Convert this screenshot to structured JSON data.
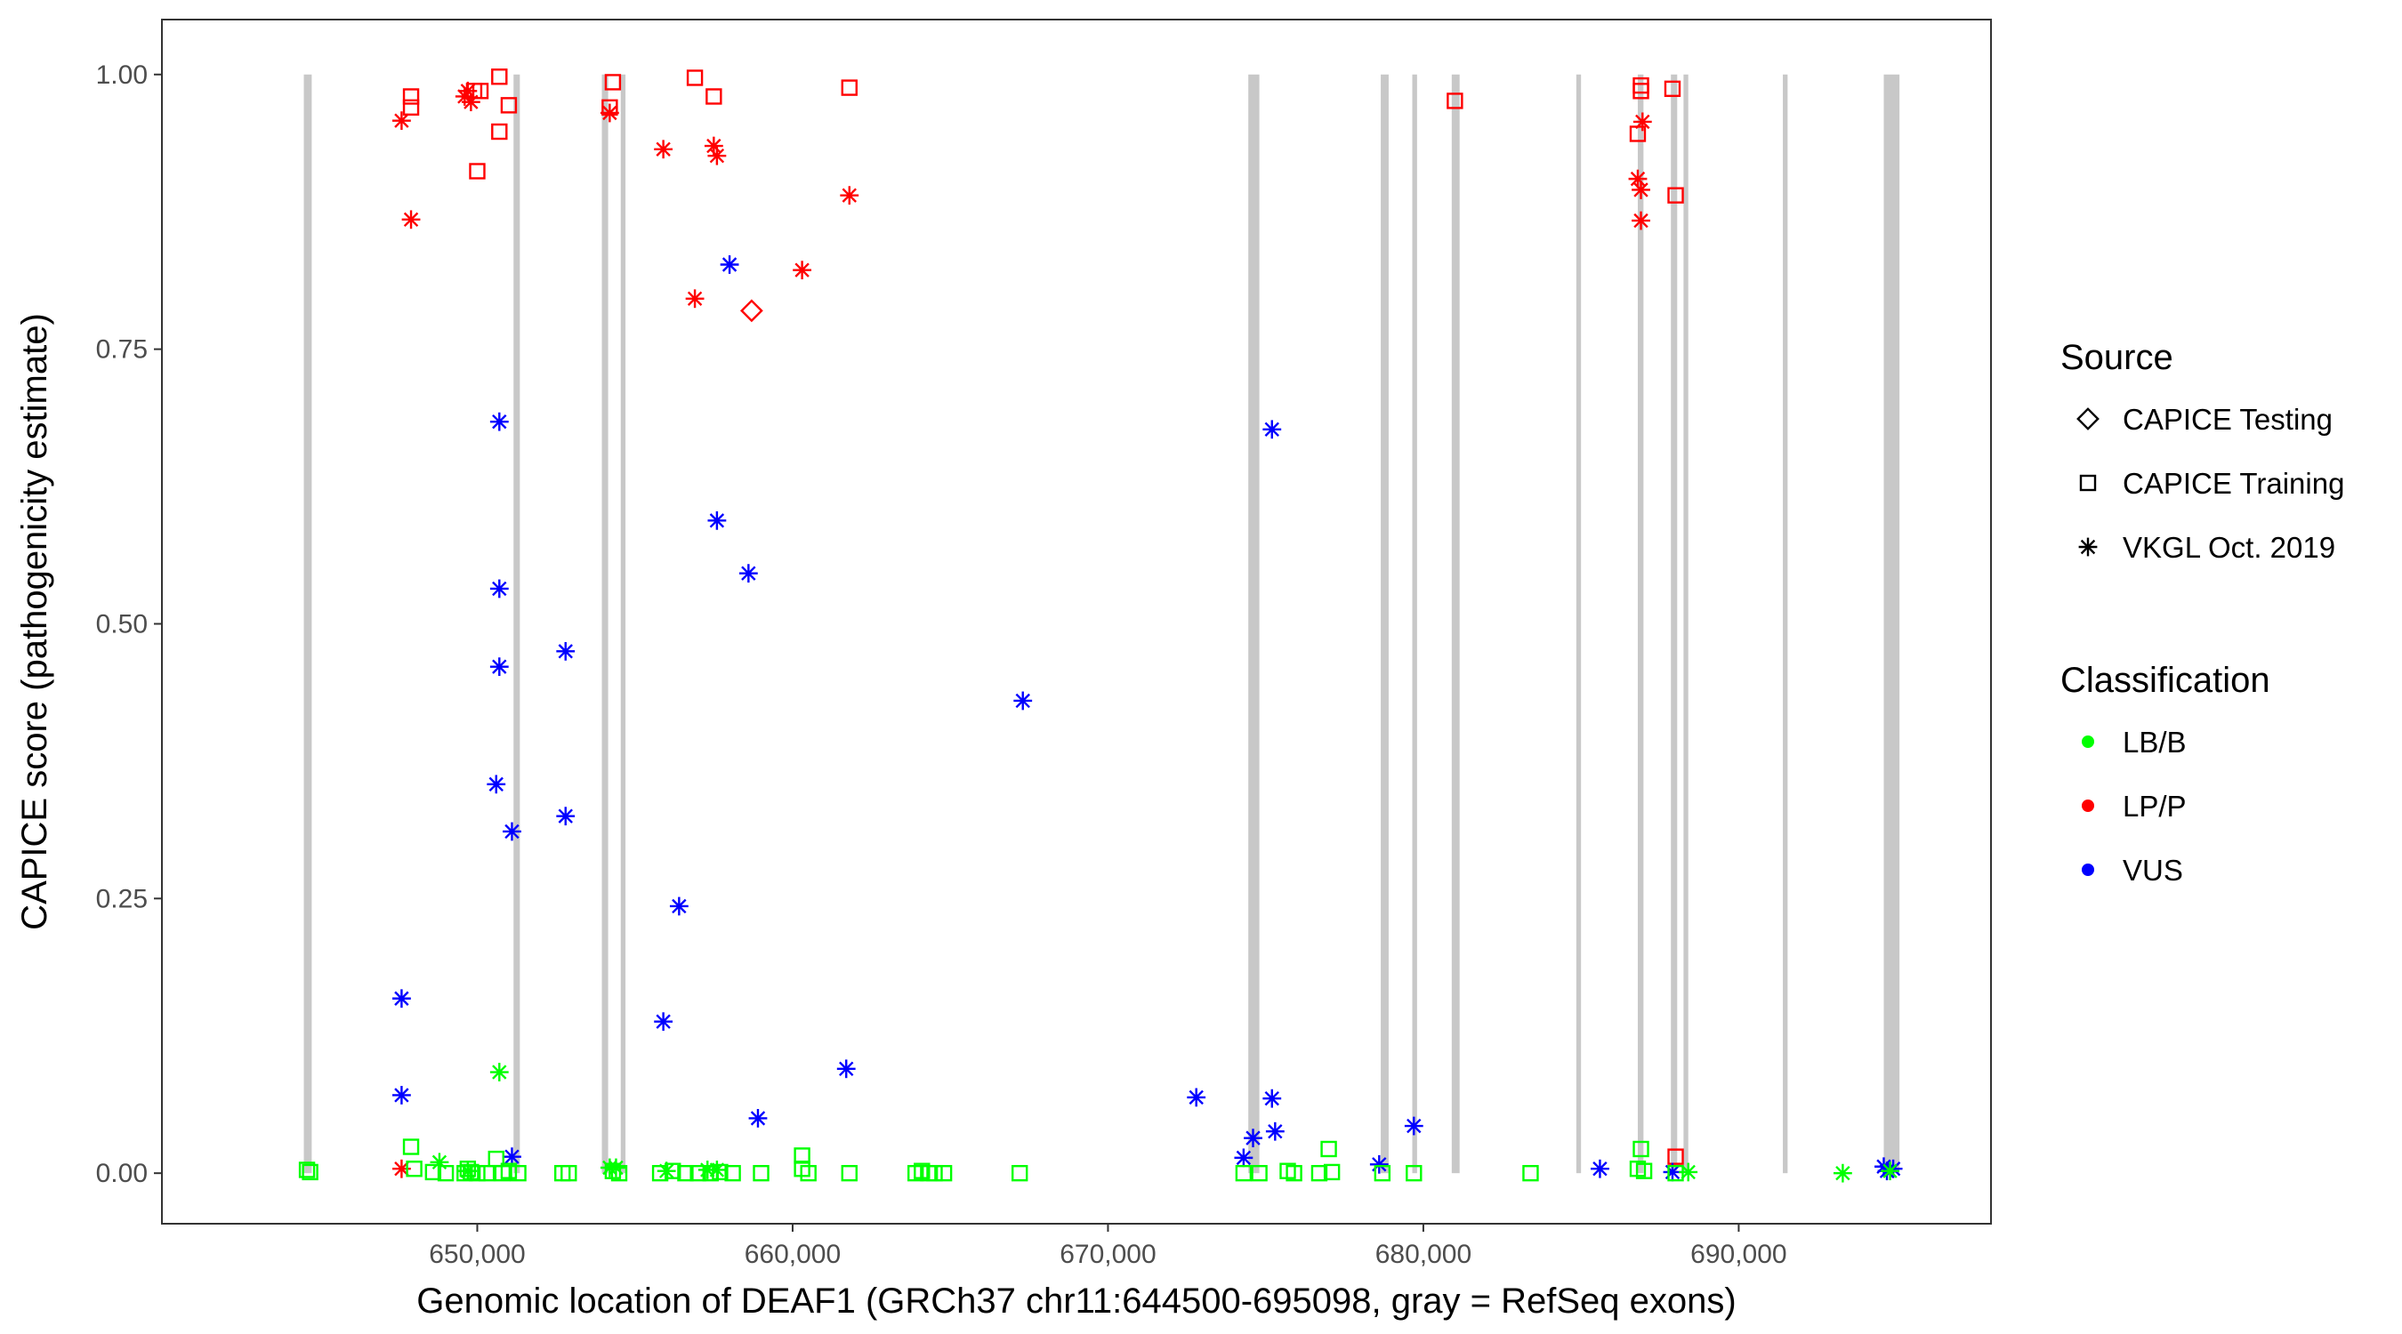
{
  "chart_data": {
    "type": "scatter",
    "xlabel": "Genomic location of DEAF1 (GRCh37 chr11:644500-695098, gray = RefSeq exons)",
    "ylabel": "CAPICE score (pathogenicity estimate)",
    "xlim": [
      640000,
      698000
    ],
    "ylim": [
      -0.046,
      1.05
    ],
    "x_ticks": [
      650000,
      660000,
      670000,
      680000,
      690000
    ],
    "x_tick_labels": [
      "650,000",
      "660,000",
      "670,000",
      "680,000",
      "690,000"
    ],
    "y_ticks": [
      0,
      0.25,
      0.5,
      0.75,
      1
    ],
    "y_tick_labels": [
      "0.00",
      "0.25",
      "0.50",
      "0.75",
      "1.00"
    ],
    "grid": false,
    "legend_position": "right",
    "exons": [
      [
        644500,
        644750
      ],
      [
        651150,
        651350
      ],
      [
        653950,
        654150
      ],
      [
        654550,
        654700
      ],
      [
        674450,
        674800
      ],
      [
        678650,
        678900
      ],
      [
        679650,
        679800
      ],
      [
        680900,
        681150
      ],
      [
        684850,
        685000
      ],
      [
        686800,
        686980
      ],
      [
        687850,
        688050
      ],
      [
        688250,
        688400
      ],
      [
        691400,
        691550
      ],
      [
        694600,
        695098
      ]
    ],
    "legend": {
      "source_title": "Source",
      "source_items": [
        {
          "label": "CAPICE Testing",
          "shape": "diamond"
        },
        {
          "label": "CAPICE Training",
          "shape": "square"
        },
        {
          "label": "VKGL Oct. 2019",
          "shape": "asterisk"
        }
      ],
      "class_title": "Classification",
      "class_items": [
        {
          "label": "LB/B",
          "color": "#00ff00"
        },
        {
          "label": "LP/P",
          "color": "#ff0000"
        },
        {
          "label": "VUS",
          "color": "#0000ff"
        }
      ]
    },
    "series": [
      {
        "classification": "LP/P",
        "source": "CAPICE Training",
        "color": "#ff0000",
        "shape": "square",
        "points": [
          [
            647900,
            0.98
          ],
          [
            647900,
            0.97
          ],
          [
            649900,
            0.985
          ],
          [
            650100,
            0.985
          ],
          [
            650700,
            0.998
          ],
          [
            650700,
            0.948
          ],
          [
            651000,
            0.972
          ],
          [
            650000,
            0.912
          ],
          [
            654300,
            0.993
          ],
          [
            654200,
            0.97
          ],
          [
            656900,
            0.997
          ],
          [
            657500,
            0.98
          ],
          [
            661800,
            0.988
          ],
          [
            681000,
            0.976
          ],
          [
            686900,
            0.99
          ],
          [
            686900,
            0.985
          ],
          [
            686800,
            0.946
          ],
          [
            687900,
            0.987
          ],
          [
            688000,
            0.89
          ],
          [
            688000,
            0.015
          ]
        ]
      },
      {
        "classification": "LP/P",
        "source": "VKGL Oct. 2019",
        "color": "#ff0000",
        "shape": "asterisk",
        "points": [
          [
            647600,
            0.958
          ],
          [
            647900,
            0.868
          ],
          [
            649700,
            0.985
          ],
          [
            649800,
            0.975
          ],
          [
            649600,
            0.98
          ],
          [
            654200,
            0.965
          ],
          [
            655900,
            0.932
          ],
          [
            657500,
            0.935
          ],
          [
            657600,
            0.926
          ],
          [
            656900,
            0.796
          ],
          [
            660300,
            0.822
          ],
          [
            661800,
            0.89
          ],
          [
            686800,
            0.905
          ],
          [
            686900,
            0.895
          ],
          [
            686950,
            0.957
          ],
          [
            686900,
            0.867
          ],
          [
            647600,
            0.004
          ]
        ]
      },
      {
        "classification": "LP/P",
        "source": "CAPICE Testing",
        "color": "#ff0000",
        "shape": "diamond",
        "points": [
          [
            658700,
            0.785
          ]
        ]
      },
      {
        "classification": "VUS",
        "source": "VKGL Oct. 2019",
        "color": "#0000ff",
        "shape": "asterisk",
        "points": [
          [
            650700,
            0.684
          ],
          [
            650700,
            0.532
          ],
          [
            650700,
            0.461
          ],
          [
            650600,
            0.354
          ],
          [
            651100,
            0.311
          ],
          [
            652800,
            0.475
          ],
          [
            652800,
            0.325
          ],
          [
            657600,
            0.594
          ],
          [
            658600,
            0.546
          ],
          [
            658000,
            0.827
          ],
          [
            656400,
            0.243
          ],
          [
            655900,
            0.138
          ],
          [
            658900,
            0.05
          ],
          [
            661700,
            0.095
          ],
          [
            667300,
            0.43
          ],
          [
            647600,
            0.159
          ],
          [
            647600,
            0.071
          ],
          [
            651100,
            0.015
          ],
          [
            672800,
            0.069
          ],
          [
            674300,
            0.014
          ],
          [
            674600,
            0.032
          ],
          [
            675200,
            0.068
          ],
          [
            675300,
            0.038
          ],
          [
            675200,
            0.677
          ],
          [
            678600,
            0.008
          ],
          [
            679700,
            0.043
          ],
          [
            685600,
            0.004
          ],
          [
            687900,
            0.001
          ],
          [
            694600,
            0.006
          ],
          [
            694700,
            0.002
          ],
          [
            694900,
            0.004
          ]
        ]
      },
      {
        "classification": "LB/B",
        "source": "VKGL Oct. 2019",
        "color": "#00ff00",
        "shape": "asterisk",
        "points": [
          [
            650700,
            0.092
          ],
          [
            648800,
            0.01
          ],
          [
            649700,
            0.002
          ],
          [
            654200,
            0.005
          ],
          [
            654400,
            0.005
          ],
          [
            656000,
            0.002
          ],
          [
            657300,
            0.003
          ],
          [
            657600,
            0.003
          ],
          [
            688400,
            0.001
          ],
          [
            693300,
            0.0
          ],
          [
            694800,
            0.002
          ]
        ]
      },
      {
        "classification": "LB/B",
        "source": "CAPICE Training",
        "color": "#00ff00",
        "shape": "square",
        "points": [
          [
            644600,
            0.003
          ],
          [
            644700,
            0.001
          ],
          [
            647900,
            0.024
          ],
          [
            648000,
            0.004
          ],
          [
            648600,
            0.001
          ],
          [
            649000,
            0.0
          ],
          [
            649600,
            0.0
          ],
          [
            649700,
            0.004
          ],
          [
            649800,
            0.001
          ],
          [
            650000,
            0.0
          ],
          [
            650300,
            0.0
          ],
          [
            650600,
            0.013
          ],
          [
            650800,
            0.0
          ],
          [
            651000,
            0.002
          ],
          [
            651300,
            0.0
          ],
          [
            652700,
            0.0
          ],
          [
            652900,
            0.0
          ],
          [
            654300,
            0.002
          ],
          [
            654500,
            0.0
          ],
          [
            655800,
            0.0
          ],
          [
            656200,
            0.002
          ],
          [
            656600,
            0.0
          ],
          [
            657000,
            0.0
          ],
          [
            657400,
            0.0
          ],
          [
            657700,
            0.001
          ],
          [
            658100,
            0.0
          ],
          [
            659000,
            0.0
          ],
          [
            660300,
            0.016
          ],
          [
            660300,
            0.004
          ],
          [
            660500,
            0.0
          ],
          [
            661800,
            0.0
          ],
          [
            663900,
            0.0
          ],
          [
            664100,
            0.002
          ],
          [
            664300,
            0.0
          ],
          [
            664500,
            0.0
          ],
          [
            664800,
            0.0
          ],
          [
            667200,
            0.0
          ],
          [
            674300,
            0.0
          ],
          [
            674800,
            0.0
          ],
          [
            675700,
            0.002
          ],
          [
            675900,
            0.0
          ],
          [
            676700,
            0.0
          ],
          [
            677000,
            0.022
          ],
          [
            677100,
            0.001
          ],
          [
            678700,
            0.0
          ],
          [
            679700,
            0.0
          ],
          [
            683400,
            0.0
          ],
          [
            686800,
            0.004
          ],
          [
            686900,
            0.022
          ],
          [
            687000,
            0.002
          ],
          [
            688000,
            0.0
          ]
        ]
      }
    ]
  }
}
